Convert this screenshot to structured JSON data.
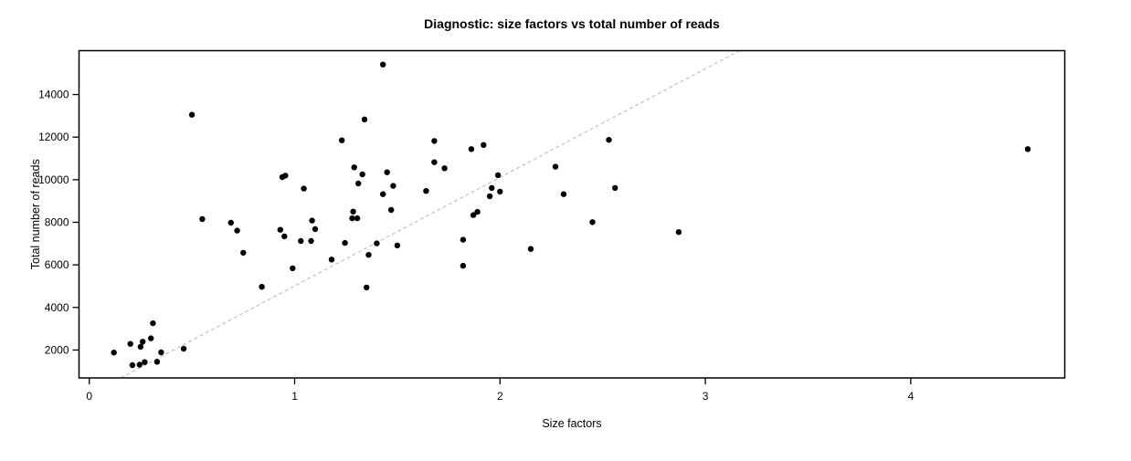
{
  "chart_data": {
    "type": "scatter",
    "title": "Diagnostic: size factors vs total number of reads",
    "xlabel": "Size factors",
    "ylabel": "Total number of reads",
    "xlim": [
      -0.05,
      4.75
    ],
    "ylim": [
      690,
      16060
    ],
    "x_ticks": [
      0,
      1,
      2,
      3,
      4
    ],
    "y_ticks": [
      2000,
      4000,
      6000,
      8000,
      10000,
      12000,
      14000
    ],
    "grid": false,
    "legend": "none",
    "point_color": "#000000",
    "box_color": "#000000",
    "reference_line": {
      "style": "dashed",
      "color": "#c2c2c2",
      "slope": 5100,
      "intercept": -90
    },
    "points": [
      [
        0.12,
        1880
      ],
      [
        0.2,
        2290
      ],
      [
        0.21,
        1290
      ],
      [
        0.245,
        1310
      ],
      [
        0.25,
        2150
      ],
      [
        0.26,
        2390
      ],
      [
        0.27,
        1430
      ],
      [
        0.3,
        2550
      ],
      [
        0.31,
        3260
      ],
      [
        0.33,
        1450
      ],
      [
        0.35,
        1890
      ],
      [
        0.46,
        2060
      ],
      [
        0.5,
        13050
      ],
      [
        0.55,
        8150
      ],
      [
        0.69,
        7980
      ],
      [
        0.72,
        7610
      ],
      [
        0.75,
        6570
      ],
      [
        0.84,
        4970
      ],
      [
        0.93,
        7650
      ],
      [
        0.94,
        10120
      ],
      [
        0.955,
        10190
      ],
      [
        0.95,
        7340
      ],
      [
        0.99,
        5840
      ],
      [
        1.03,
        7120
      ],
      [
        1.045,
        9580
      ],
      [
        1.08,
        7120
      ],
      [
        1.085,
        8080
      ],
      [
        1.1,
        7680
      ],
      [
        1.18,
        6250
      ],
      [
        1.23,
        11850
      ],
      [
        1.245,
        7030
      ],
      [
        1.28,
        8190
      ],
      [
        1.285,
        8500
      ],
      [
        1.305,
        8190
      ],
      [
        1.29,
        10580
      ],
      [
        1.31,
        9820
      ],
      [
        1.33,
        10250
      ],
      [
        1.34,
        12830
      ],
      [
        1.35,
        4940
      ],
      [
        1.36,
        6470
      ],
      [
        1.4,
        7010
      ],
      [
        1.43,
        15410
      ],
      [
        1.43,
        9320
      ],
      [
        1.45,
        10350
      ],
      [
        1.47,
        8580
      ],
      [
        1.48,
        9710
      ],
      [
        1.5,
        6910
      ],
      [
        1.64,
        9470
      ],
      [
        1.68,
        11820
      ],
      [
        1.68,
        10820
      ],
      [
        1.73,
        10540
      ],
      [
        1.82,
        7180
      ],
      [
        1.82,
        5960
      ],
      [
        1.86,
        11440
      ],
      [
        1.87,
        8340
      ],
      [
        1.89,
        8490
      ],
      [
        1.92,
        11630
      ],
      [
        1.95,
        9220
      ],
      [
        1.96,
        9610
      ],
      [
        1.99,
        10210
      ],
      [
        2.0,
        9440
      ],
      [
        2.15,
        6750
      ],
      [
        2.27,
        10610
      ],
      [
        2.31,
        9320
      ],
      [
        2.45,
        8010
      ],
      [
        2.53,
        11870
      ],
      [
        2.56,
        9610
      ],
      [
        2.87,
        7540
      ],
      [
        4.57,
        11440
      ]
    ]
  }
}
